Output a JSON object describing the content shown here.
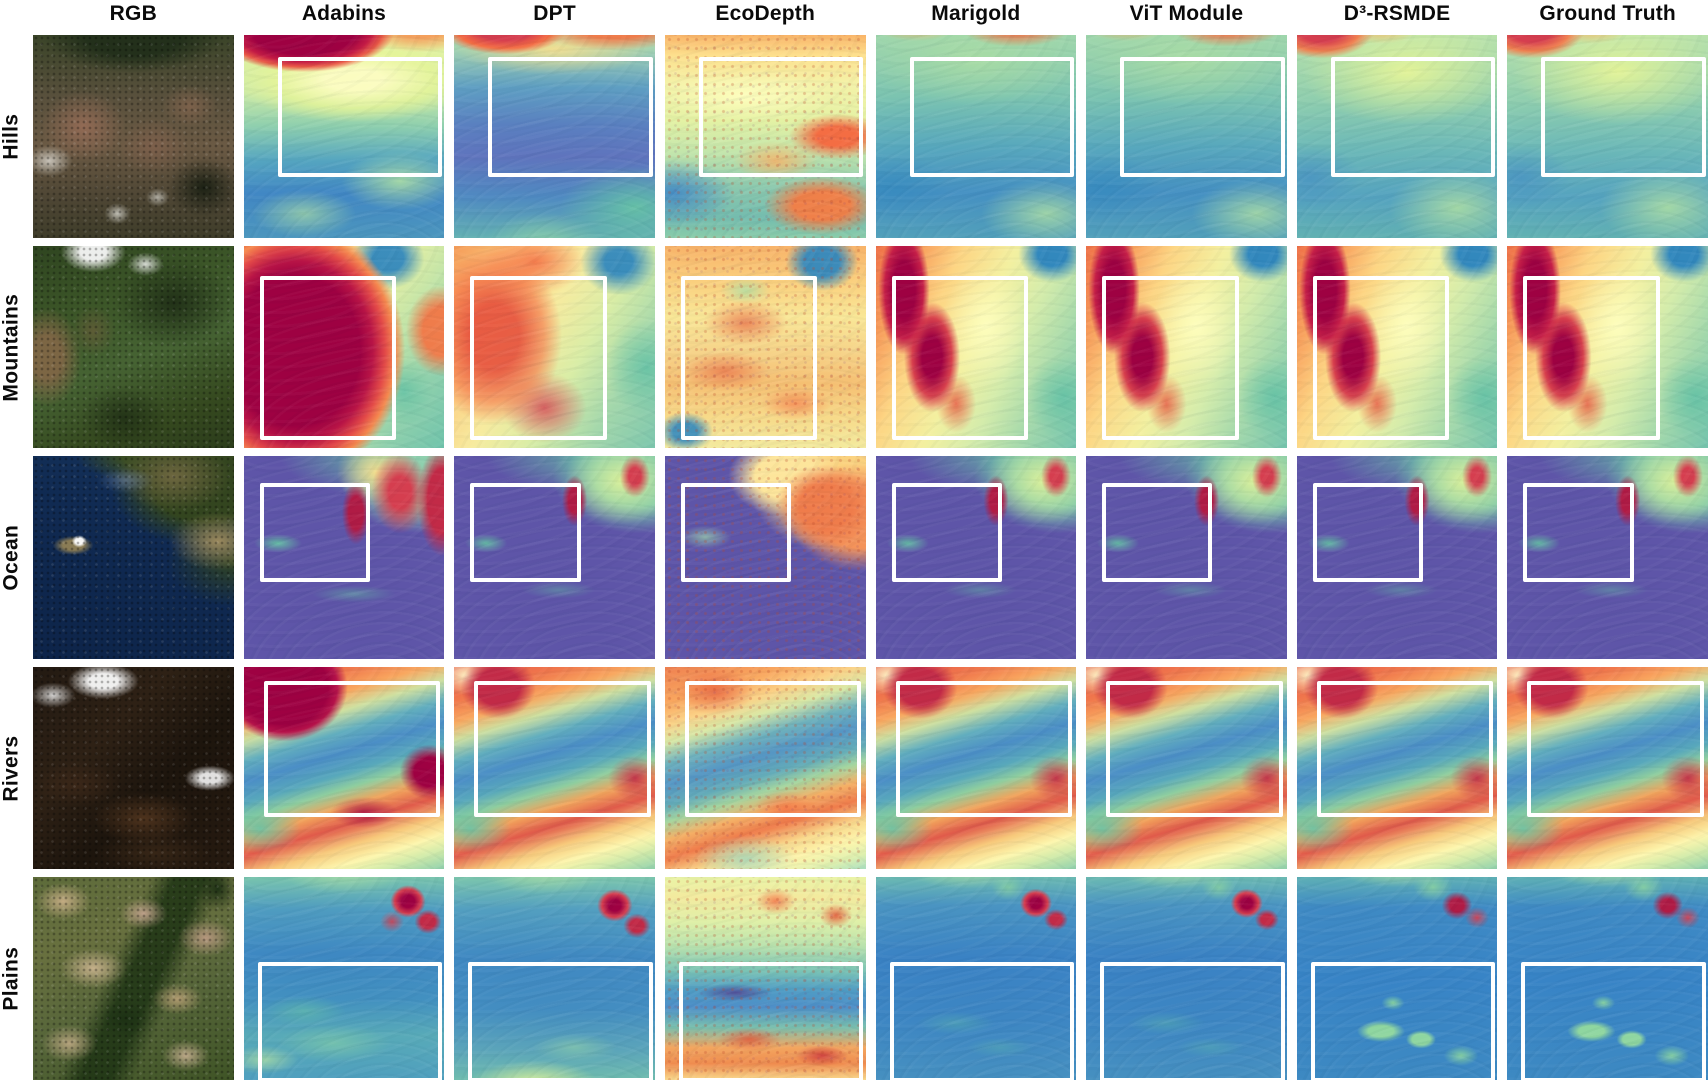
{
  "figure": {
    "column_headers": [
      "RGB",
      "Adabins",
      "DPT",
      "EcoDepth",
      "Marigold",
      "ViT Module",
      "D³-RSMDE",
      "Ground Truth"
    ],
    "row_labels": [
      "Hills",
      "Mountains",
      "Ocean",
      "Rivers",
      "Plains"
    ],
    "colors": {
      "figure_background": "#ffffff",
      "header_text": "#0a0a0a",
      "roi_rectangle_stroke": "#ffffff",
      "depth_colormap_low_to_high": [
        "#5e4fa2",
        "#3288bd",
        "#66c2a5",
        "#abdda4",
        "#e6f598",
        "#ffffbf",
        "#fee08b",
        "#fdae61",
        "#f46d43",
        "#d53e4f",
        "#9e0142"
      ],
      "ocean_flat_depth": "#5e55a8"
    }
  }
}
